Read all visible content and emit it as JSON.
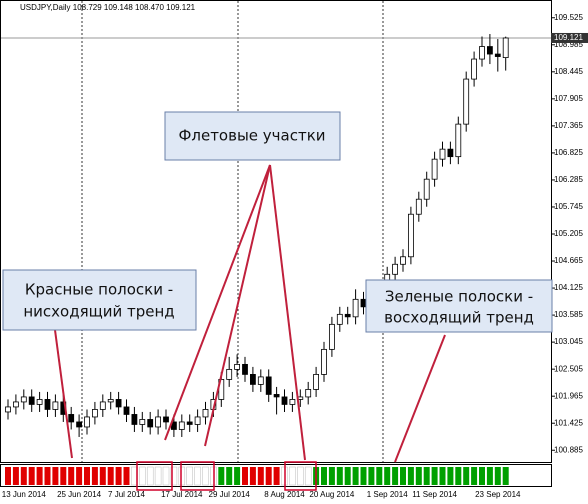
{
  "chart_data": {
    "type": "candlestick",
    "title": "USDJPY,Daily  108.729 109.148 108.470 109.121",
    "categories": [
      null,
      null,
      "13 Jun 2014",
      null,
      null,
      null,
      null,
      null,
      null,
      "25 Jun 2014",
      null,
      null,
      null,
      null,
      null,
      "7 Jul 2014",
      null,
      null,
      null,
      null,
      null,
      null,
      "17 Jul 2014",
      null,
      null,
      null,
      null,
      null,
      "29 Jul 2014",
      null,
      null,
      null,
      null,
      null,
      null,
      "8 Aug 2014",
      null,
      null,
      null,
      null,
      null,
      "20 Aug 2014",
      null,
      null,
      null,
      null,
      null,
      null,
      "1 Sep 2014",
      null,
      null,
      null,
      null,
      null,
      "11 Sep 2014",
      null,
      null,
      null,
      null,
      null,
      null,
      null,
      "23 Sep 2014",
      null
    ],
    "open": [
      101.65,
      101.75,
      101.85,
      101.95,
      101.8,
      101.9,
      101.7,
      101.85,
      101.6,
      101.45,
      101.35,
      101.55,
      101.7,
      101.85,
      101.9,
      101.75,
      101.6,
      101.4,
      101.5,
      101.35,
      101.55,
      101.45,
      101.3,
      101.45,
      101.4,
      101.55,
      101.7,
      101.9,
      102.3,
      102.5,
      102.6,
      102.4,
      102.2,
      102.35,
      102.0,
      101.95,
      101.8,
      101.9,
      101.95,
      102.1,
      102.4,
      102.9,
      103.4,
      103.6,
      103.55,
      103.9,
      103.75,
      103.85,
      103.95,
      104.4,
      104.6,
      104.75,
      105.6,
      105.9,
      106.3,
      106.7,
      106.9,
      106.75,
      107.4,
      108.3,
      108.7,
      108.95,
      108.8,
      108.729
    ],
    "high": [
      101.9,
      102.0,
      102.1,
      102.1,
      102.05,
      102.05,
      102.0,
      102.0,
      101.75,
      101.6,
      101.7,
      101.85,
      102.0,
      102.05,
      102.05,
      101.9,
      101.75,
      101.65,
      101.65,
      101.7,
      101.7,
      101.6,
      101.6,
      101.6,
      101.7,
      101.85,
      102.05,
      102.45,
      102.75,
      102.8,
      102.75,
      102.55,
      102.5,
      102.5,
      102.15,
      102.1,
      102.05,
      102.1,
      102.25,
      102.55,
      103.05,
      103.55,
      103.75,
      103.75,
      104.1,
      104.05,
      104.0,
      104.1,
      104.55,
      104.75,
      104.9,
      105.75,
      106.05,
      106.45,
      106.85,
      107.05,
      107.05,
      107.55,
      108.45,
      108.85,
      109.15,
      109.2,
      109.1,
      109.148
    ],
    "low": [
      101.5,
      101.6,
      101.7,
      101.65,
      101.65,
      101.55,
      101.55,
      101.45,
      101.3,
      101.15,
      101.2,
      101.4,
      101.55,
      101.7,
      101.6,
      101.45,
      101.25,
      101.25,
      101.2,
      101.2,
      101.3,
      101.15,
      101.15,
      101.25,
      101.25,
      101.4,
      101.55,
      101.75,
      102.15,
      102.35,
      102.25,
      102.05,
      102.05,
      101.85,
      101.6,
      101.65,
      101.65,
      101.75,
      101.8,
      101.95,
      102.25,
      102.75,
      103.25,
      103.4,
      103.4,
      103.6,
      103.6,
      103.7,
      103.8,
      104.25,
      104.45,
      104.6,
      105.45,
      105.75,
      106.15,
      106.55,
      106.6,
      106.6,
      107.25,
      108.15,
      108.55,
      108.6,
      108.45,
      108.47
    ],
    "close": [
      101.75,
      101.85,
      101.95,
      101.8,
      101.9,
      101.7,
      101.85,
      101.6,
      101.45,
      101.35,
      101.55,
      101.7,
      101.85,
      101.9,
      101.75,
      101.6,
      101.4,
      101.5,
      101.35,
      101.55,
      101.45,
      101.3,
      101.45,
      101.4,
      101.55,
      101.7,
      101.9,
      102.3,
      102.5,
      102.6,
      102.4,
      102.2,
      102.35,
      102.0,
      101.95,
      101.8,
      101.9,
      101.95,
      102.1,
      102.4,
      102.9,
      103.4,
      103.6,
      103.55,
      103.9,
      103.75,
      103.85,
      103.95,
      104.4,
      104.6,
      104.75,
      105.6,
      105.9,
      106.3,
      106.7,
      106.9,
      106.75,
      107.4,
      108.3,
      108.7,
      108.95,
      108.8,
      108.75,
      109.121
    ],
    "up_color": "#ffffff",
    "down_color": "#000000",
    "ylim": [
      100.67,
      109.72
    ],
    "yticks": [
      109.525,
      108.985,
      108.445,
      107.905,
      107.365,
      106.825,
      106.285,
      105.745,
      105.205,
      104.665,
      104.125,
      103.585,
      103.045,
      102.505,
      101.965,
      101.425,
      100.885
    ],
    "indicator_colors": [
      "#e00000",
      "#e00000",
      "#e00000",
      "#e00000",
      "#e00000",
      "#e00000",
      "#e00000",
      "#e00000",
      "#e00000",
      "#e00000",
      "#e00000",
      "#e00000",
      "#e00000",
      "#e00000",
      "#e00000",
      "#e00000",
      "#ffffff",
      "#ffffff",
      "#ffffff",
      "#ffffff",
      "#ffffff",
      "#ffffff",
      "#ffffff",
      "#ffffff",
      "#ffffff",
      "#ffffff",
      "#ffffff",
      "#00a000",
      "#00a000",
      "#00a000",
      "#e00000",
      "#e00000",
      "#e00000",
      "#e00000",
      "#e00000",
      "#ffffff",
      "#ffffff",
      "#ffffff",
      "#ffffff",
      "#00a000",
      "#00a000",
      "#00a000",
      "#00a000",
      "#00a000",
      "#00a000",
      "#00a000",
      "#00a000",
      "#00a000",
      "#00a000",
      "#00a000",
      "#00a000",
      "#00a000",
      "#00a000",
      "#00a000",
      "#00a000",
      "#00a000",
      "#00a000",
      "#00a000",
      "#00a000",
      "#00a000",
      "#00a000",
      "#00a000",
      "#00a000",
      "#00a000"
    ],
    "annotations": {
      "flat": "Флетовые участки",
      "red": [
        "Красные полоски  -",
        "нисходящий тренд"
      ],
      "green": [
        "Зеленые полоски -",
        "восходящий тренд"
      ]
    }
  }
}
